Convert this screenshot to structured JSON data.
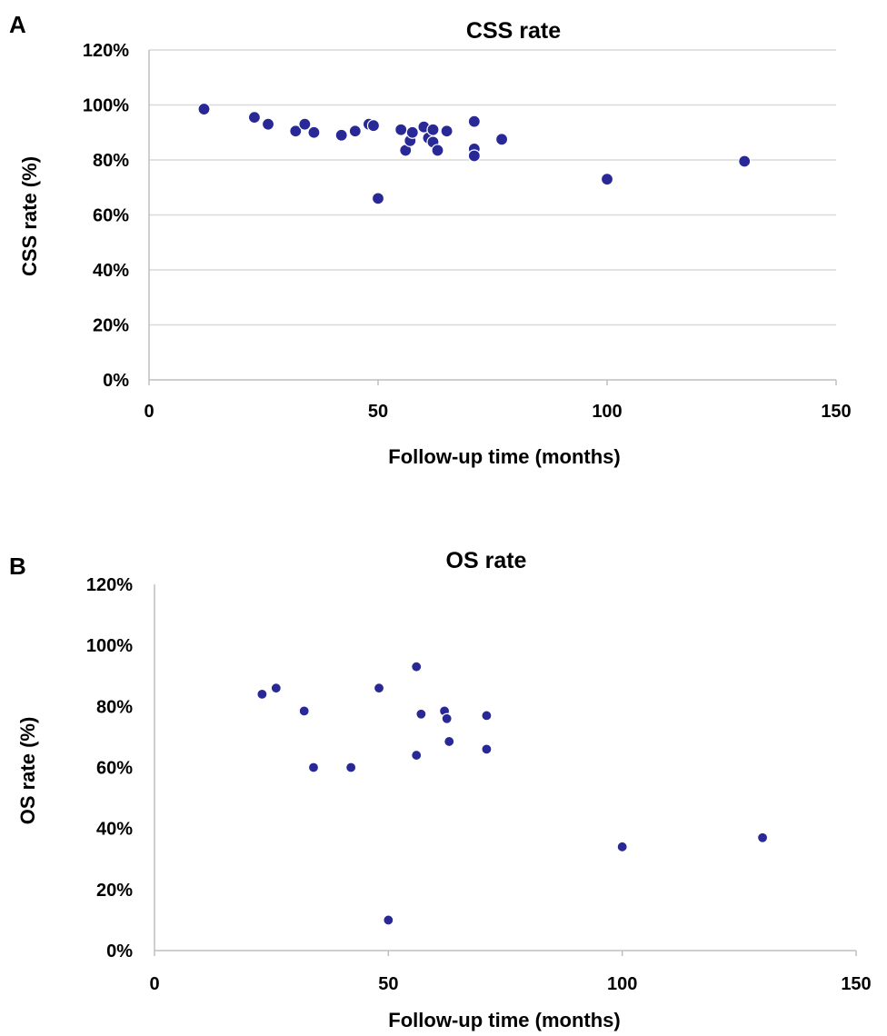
{
  "chart_data": [
    {
      "type": "scatter",
      "panel": "A",
      "title": "CSS rate",
      "xlabel": "Follow-up time (months)",
      "ylabel": "CSS rate (%)",
      "xlim": [
        0,
        150
      ],
      "ylim": [
        0,
        120
      ],
      "x_ticks": [
        "0",
        "50",
        "100",
        "150"
      ],
      "y_ticks": [
        "0%",
        "20%",
        "40%",
        "60%",
        "80%",
        "100%",
        "120%"
      ],
      "grid": "horizontal",
      "marker_color": "#282896",
      "points": [
        {
          "x": 12,
          "y": 98.5
        },
        {
          "x": 23,
          "y": 95.5
        },
        {
          "x": 26,
          "y": 93
        },
        {
          "x": 32,
          "y": 90.5
        },
        {
          "x": 34,
          "y": 93
        },
        {
          "x": 36,
          "y": 90
        },
        {
          "x": 42,
          "y": 89
        },
        {
          "x": 45,
          "y": 90.5
        },
        {
          "x": 48,
          "y": 93
        },
        {
          "x": 49,
          "y": 92.5
        },
        {
          "x": 50,
          "y": 66
        },
        {
          "x": 55,
          "y": 91
        },
        {
          "x": 56,
          "y": 83.5
        },
        {
          "x": 57,
          "y": 87
        },
        {
          "x": 57.5,
          "y": 90
        },
        {
          "x": 60,
          "y": 92
        },
        {
          "x": 61,
          "y": 88
        },
        {
          "x": 62,
          "y": 91
        },
        {
          "x": 62,
          "y": 86.5
        },
        {
          "x": 63,
          "y": 83.5
        },
        {
          "x": 65,
          "y": 90.5
        },
        {
          "x": 71,
          "y": 94
        },
        {
          "x": 71,
          "y": 84
        },
        {
          "x": 71,
          "y": 81.5
        },
        {
          "x": 77,
          "y": 87.5
        },
        {
          "x": 100,
          "y": 73
        },
        {
          "x": 130,
          "y": 79.5
        }
      ]
    },
    {
      "type": "scatter",
      "panel": "B",
      "title": "OS rate",
      "xlabel": "Follow-up time (months)",
      "ylabel": "OS rate (%)",
      "xlim": [
        0,
        150
      ],
      "ylim": [
        0,
        120
      ],
      "x_ticks": [
        "0",
        "50",
        "100",
        "150"
      ],
      "y_ticks": [
        "0%",
        "20%",
        "40%",
        "60%",
        "80%",
        "100%",
        "120%"
      ],
      "grid": "none",
      "marker_color": "#282896",
      "points": [
        {
          "x": 23,
          "y": 84
        },
        {
          "x": 26,
          "y": 86
        },
        {
          "x": 32,
          "y": 78.5
        },
        {
          "x": 34,
          "y": 60
        },
        {
          "x": 42,
          "y": 60
        },
        {
          "x": 48,
          "y": 86
        },
        {
          "x": 50,
          "y": 10
        },
        {
          "x": 56,
          "y": 93
        },
        {
          "x": 56,
          "y": 64
        },
        {
          "x": 57,
          "y": 77.5
        },
        {
          "x": 62,
          "y": 78.5
        },
        {
          "x": 62.5,
          "y": 76
        },
        {
          "x": 63,
          "y": 68.5
        },
        {
          "x": 71,
          "y": 77
        },
        {
          "x": 71,
          "y": 66
        },
        {
          "x": 100,
          "y": 34
        },
        {
          "x": 130,
          "y": 37
        }
      ]
    }
  ]
}
